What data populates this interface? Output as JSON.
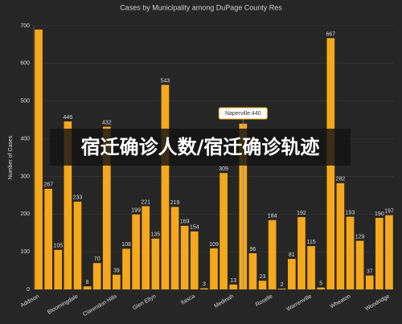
{
  "chart_data": {
    "type": "bar",
    "title": "Cases by Municipality among DuPage County Res",
    "y_label": "Number of Cases",
    "categories": [
      "Addison",
      null,
      null,
      null,
      "Bloomingdale",
      null,
      null,
      null,
      "Clarendon Hills",
      null,
      null,
      null,
      "Glen Ellyn",
      null,
      null,
      null,
      "Itasca",
      null,
      null,
      null,
      "Medinah",
      null,
      null,
      null,
      "Roselle",
      null,
      null,
      null,
      "Warrenville",
      null,
      null,
      null,
      "Wheaton",
      null,
      null,
      null,
      "Woodridge"
    ],
    "values": [
      690,
      267,
      105,
      446,
      233,
      8,
      70,
      432,
      39,
      108,
      199,
      221,
      135,
      543,
      219,
      169,
      154,
      3,
      109,
      309,
      13,
      440,
      96,
      23,
      184,
      2,
      81,
      192,
      115,
      5,
      667,
      282,
      193,
      129,
      37,
      190,
      197
    ],
    "value_labels": [
      null,
      "267",
      "105",
      "446",
      "233",
      "8",
      "70",
      "432",
      "39",
      "108",
      "199",
      "221",
      "135",
      "543",
      "219",
      "169",
      "154",
      "3",
      "109",
      "309",
      "13",
      null,
      "96",
      "23",
      "184",
      "2",
      "81",
      "192",
      "115",
      "5",
      "667",
      "282",
      "193",
      "129",
      "37",
      "190",
      "197"
    ],
    "color": "#f5a81c",
    "ylim": [
      0,
      700
    ],
    "yticks": [
      0,
      100,
      200,
      300,
      400,
      500,
      600,
      700
    ],
    "grid": true,
    "tooltip": "Naperville:440"
  },
  "overlay_text": "宿迁确诊人数/宿迁确诊轨迹"
}
